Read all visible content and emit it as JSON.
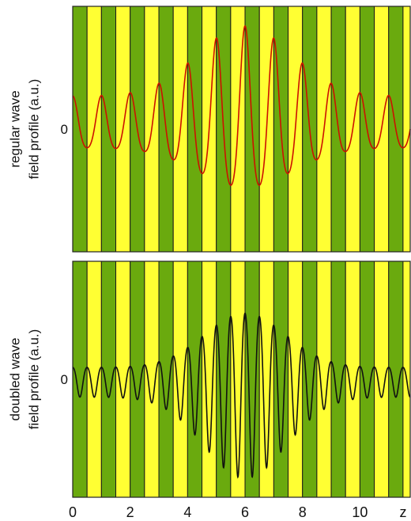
{
  "chart_data": [
    {
      "type": "line",
      "panel": "top",
      "ylabel": [
        "regular wave",
        "field profile (a.u.)"
      ],
      "ytick": "0",
      "xlim": [
        0,
        11.75
      ],
      "stripe_period": 0.5,
      "stripe_colors": [
        "#6aaa0e",
        "#ffff33"
      ],
      "series": [
        {
          "color": "#cc1100",
          "envelope": {
            "center": 6,
            "sigma": 2.3,
            "peak": 1.0,
            "baseline": 0.32
          },
          "carrier_period": 1.0,
          "asymmetry": {
            "factor": 0.28,
            "sign": 1
          }
        }
      ]
    },
    {
      "type": "line",
      "panel": "bottom",
      "ylabel": [
        "doubled wave",
        "field profile (a.u.)"
      ],
      "ytick": "0",
      "xlim": [
        0,
        11.75
      ],
      "stripe_period": 0.5,
      "stripe_colors": [
        "#6aaa0e",
        "#ffff33"
      ],
      "xticks": [
        "0",
        "2",
        "4",
        "6",
        "8",
        "10"
      ],
      "xlabel": "z",
      "series": [
        {
          "color": "#111111",
          "envelope": {
            "center": 6,
            "sigma": 2.0,
            "peak": 1.0,
            "baseline": 0.18
          },
          "carrier_period": 0.5,
          "asymmetry": {
            "factor": 0.2,
            "sign": -1
          }
        }
      ]
    }
  ]
}
